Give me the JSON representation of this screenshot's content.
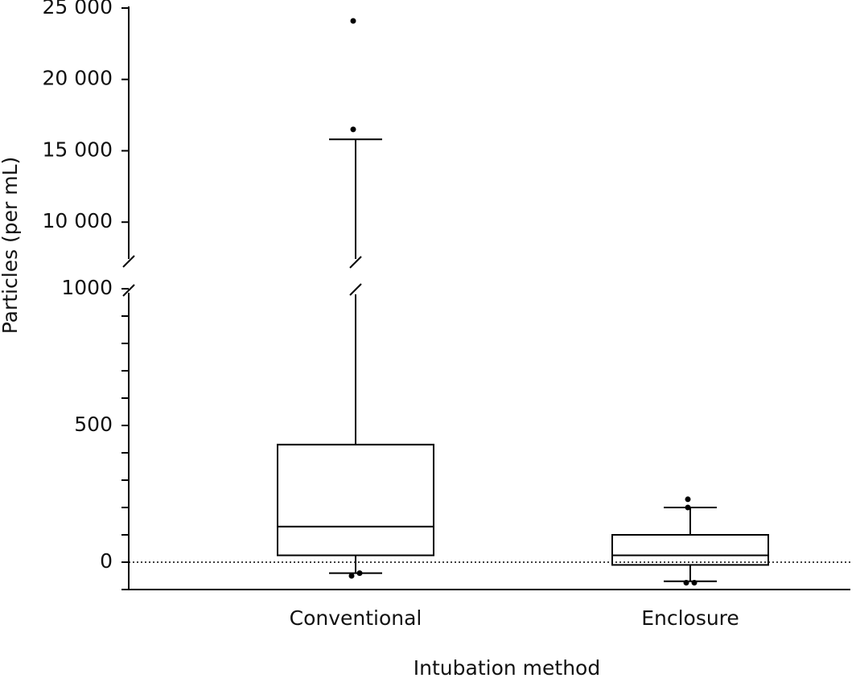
{
  "chart_data": {
    "type": "box",
    "x_label": "Intubation method",
    "y_label": "Particles (per mL)",
    "categories": [
      "Conventional",
      "Enclosure"
    ],
    "boxes": [
      {
        "whisker_low": -40,
        "q1": 25,
        "median": 130,
        "q3": 430,
        "whisker_high": 15800,
        "outliers": [
          -50,
          -40,
          16500,
          24100
        ]
      },
      {
        "whisker_low": -70,
        "q1": -10,
        "median": 25,
        "q3": 100,
        "whisker_high": 200,
        "outliers": [
          -75,
          -75,
          200,
          230
        ]
      }
    ],
    "ylim_lower": [
      -100,
      1000
    ],
    "yticks_lower": [
      0,
      500,
      1000
    ],
    "y_minor_ticks_lower": [
      -100,
      0,
      100,
      200,
      300,
      400,
      500,
      600,
      700,
      800,
      900,
      1000
    ],
    "ylim_upper": [
      7250,
      25000
    ],
    "yticks_upper": [
      {
        "value": 10000,
        "label": "10 000"
      },
      {
        "value": 15000,
        "label": "15 000"
      },
      {
        "value": 20000,
        "label": "20 000"
      },
      {
        "value": 25000,
        "label": "25 000"
      }
    ],
    "reference_line": 0,
    "color": "#000000"
  }
}
